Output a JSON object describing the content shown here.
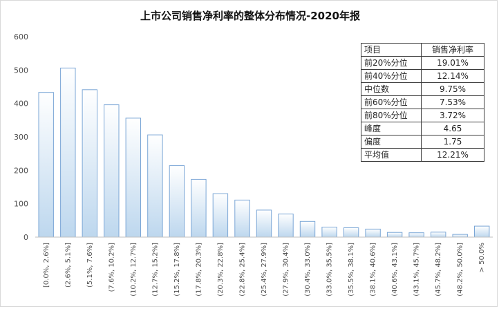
{
  "chart_data": {
    "type": "bar",
    "title": "上市公司销售净利率的整体分布情况-2020年报",
    "xlabel": "",
    "ylabel": "",
    "ylim": [
      0,
      600
    ],
    "yticks": [
      0,
      100,
      200,
      300,
      400,
      500,
      600
    ],
    "grid": false,
    "bar_color": "#bdd7ee",
    "bar_edge": "#7aa6d6",
    "categories": [
      "[0.0%, 2.6%]",
      "(2.6%, 5.1%]",
      "(5.1%, 7.6%]",
      "(7.6%, 10.2%]",
      "(10.2%, 12.7%]",
      "(12.7%, 15.2%]",
      "(15.2%, 17.8%]",
      "(17.8%, 20.3%]",
      "(20.3%, 22.8%]",
      "(22.8%, 25.4%]",
      "(25.4%, 27.9%]",
      "(27.9%, 30.4%]",
      "(30.4%, 33.0%]",
      "(33.0%, 35.5%]",
      "(35.5%, 38.1%]",
      "(38.1%, 40.6%]",
      "(40.6%, 43.1%]",
      "(43.1%, 45.7%]",
      "(45.7%, 48.2%]",
      "(48.2%, 50.0%]",
      "> 50.0%"
    ],
    "values": [
      433,
      506,
      441,
      396,
      356,
      306,
      214,
      173,
      130,
      111,
      81,
      69,
      47,
      30,
      28,
      24,
      14,
      13,
      15,
      8,
      33
    ]
  },
  "stats_table": {
    "header": [
      "项目",
      "销售净利率"
    ],
    "rows": [
      [
        "前20%分位",
        "19.01%"
      ],
      [
        "前40%分位",
        "12.14%"
      ],
      [
        "中位数",
        "9.75%"
      ],
      [
        "前60%分位",
        "7.53%"
      ],
      [
        "前80%分位",
        "3.72%"
      ],
      [
        "峰度",
        "4.65"
      ],
      [
        "偏度",
        "1.75"
      ],
      [
        "平均值",
        "12.21%"
      ]
    ]
  }
}
